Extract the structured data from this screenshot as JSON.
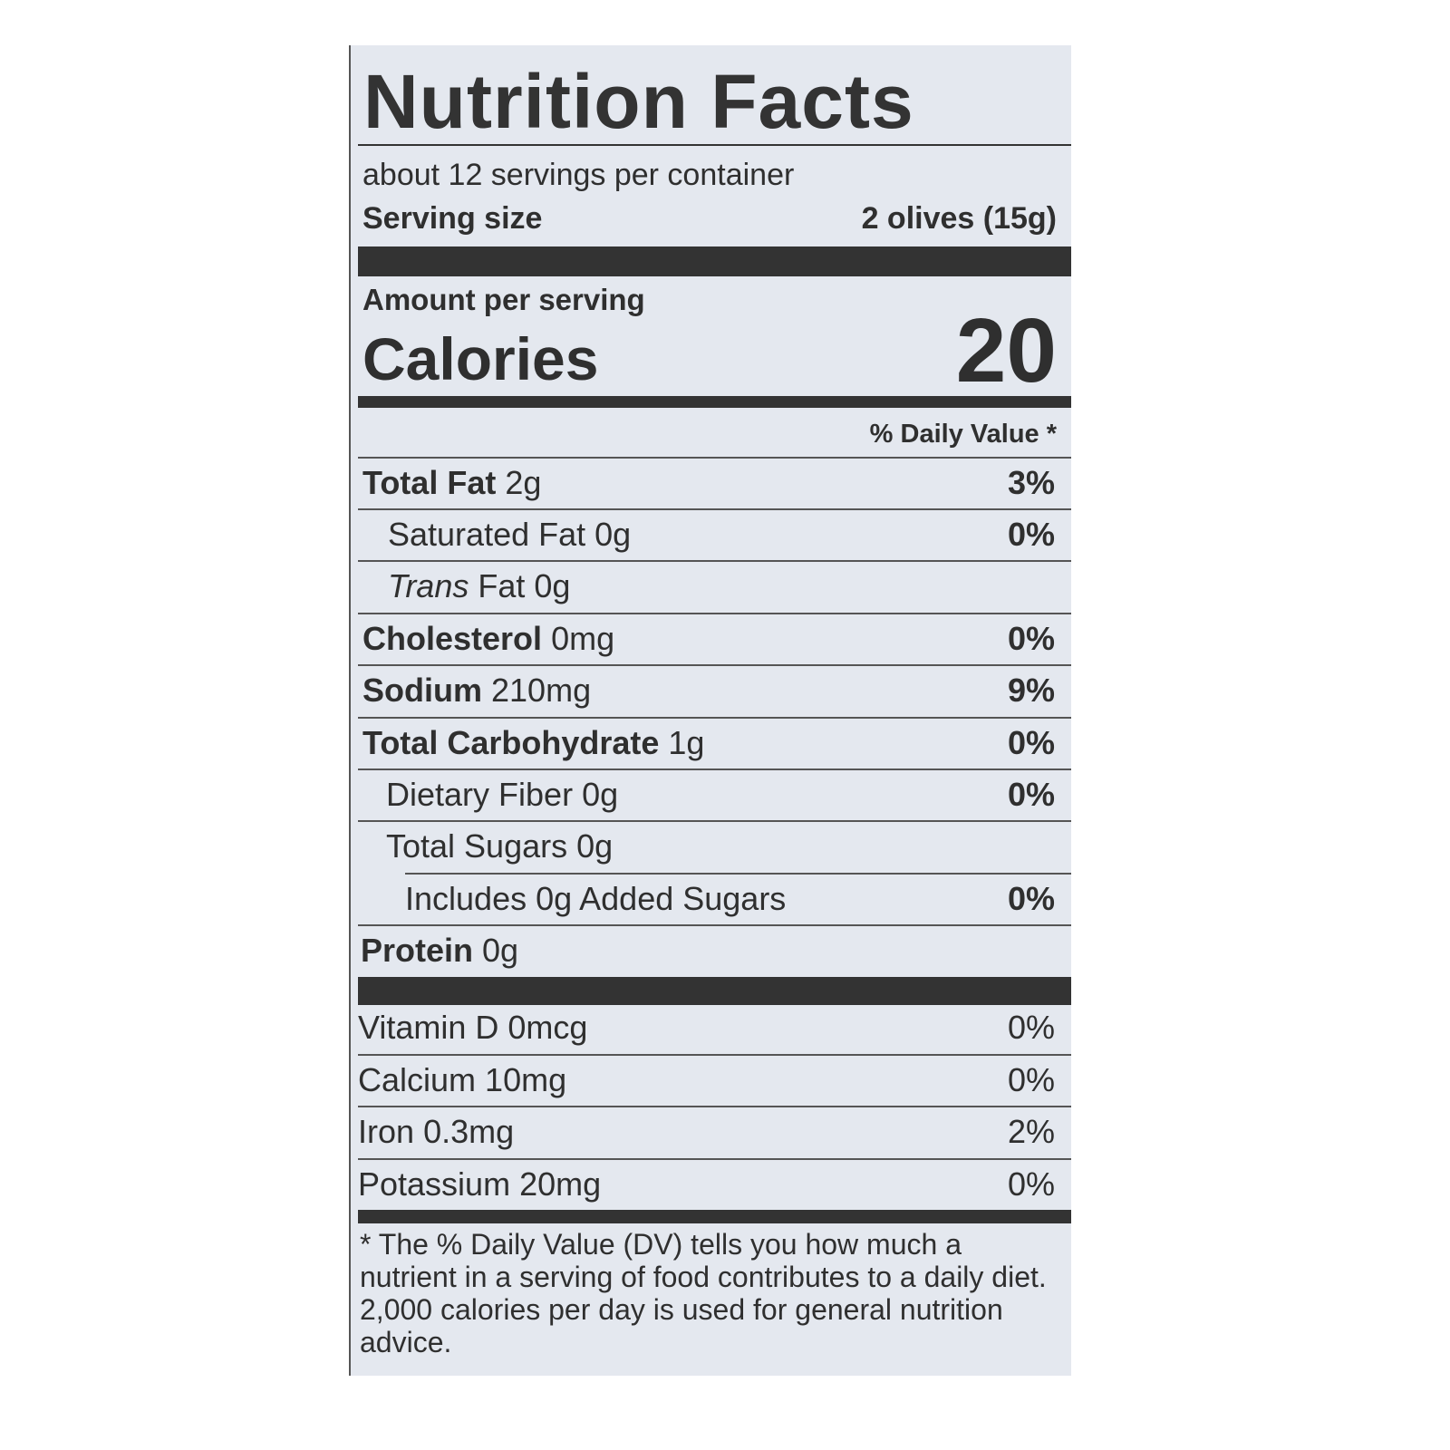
{
  "label": {
    "title": "Nutrition Facts",
    "servings_per_container": "about 12 servings per container",
    "serving_size_label": "Serving size",
    "serving_size_value": "2 olives (15g)",
    "amount_per_serving": "Amount per serving",
    "calories_label": "Calories",
    "calories_value": "20",
    "daily_value_header": "% Daily Value *",
    "nutrients": [
      {
        "name": "Total Fat",
        "amount": "2g",
        "dv": "3%"
      },
      {
        "name": "Saturated Fat",
        "amount": "0g",
        "dv": "0%"
      },
      {
        "name": "Trans",
        "name_rest": "Fat",
        "amount": "0g",
        "dv": ""
      },
      {
        "name": "Cholesterol",
        "amount": "0mg",
        "dv": "0%"
      },
      {
        "name": "Sodium",
        "amount": "210mg",
        "dv": "9%"
      },
      {
        "name": "Total Carbohydrate",
        "amount": "1g",
        "dv": "0%"
      },
      {
        "name": "Dietary Fiber",
        "amount": "0g",
        "dv": "0%"
      },
      {
        "name": "Total Sugars",
        "amount": "0g",
        "dv": ""
      },
      {
        "name": "Includes 0g Added Sugars",
        "amount": "",
        "dv": "0%"
      },
      {
        "name": "Protein",
        "amount": "0g",
        "dv": ""
      }
    ],
    "vitamins": [
      {
        "name": "Vitamin D",
        "amount": "0mcg",
        "dv": "0%"
      },
      {
        "name": "Calcium",
        "amount": "10mg",
        "dv": "0%"
      },
      {
        "name": "Iron",
        "amount": "0.3mg",
        "dv": "2%"
      },
      {
        "name": "Potassium",
        "amount": "20mg",
        "dv": "0%"
      }
    ],
    "footnote": "* The % Daily Value (DV) tells you how much a nutrient in a serving of food contributes to a daily diet. 2,000 calories per day is used for general nutrition advice."
  },
  "colors": {
    "background": "#e4e8ef",
    "ink": "#333333"
  }
}
